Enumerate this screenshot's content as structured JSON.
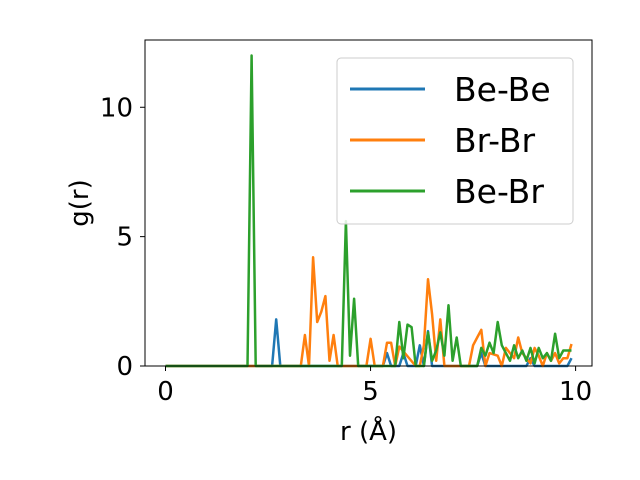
{
  "chart_data": {
    "type": "line",
    "title": "",
    "xlabel": "r (Å)",
    "ylabel": "g(r)",
    "xlim": [
      -0.5,
      10.4
    ],
    "ylim": [
      0,
      12.6
    ],
    "xticks": [
      0,
      5,
      10
    ],
    "xtick_labels": [
      "0",
      "5",
      "10"
    ],
    "yticks": [
      0,
      5,
      10
    ],
    "ytick_labels": [
      "0",
      "5",
      "10"
    ],
    "grid": false,
    "legend_position": "top-right",
    "series": [
      {
        "name": "Be-Be",
        "color": "#1f77b4",
        "x": [
          0,
          2.6,
          2.7,
          2.8,
          5.3,
          5.4,
          5.5,
          5.7,
          5.8,
          5.9,
          6.1,
          6.2,
          6.3,
          6.4,
          6.5,
          6.6,
          7.6,
          7.7,
          7.8,
          8.8,
          8.9,
          9.0,
          9.8,
          9.9
        ],
        "y": [
          0,
          0,
          1.8,
          0,
          0,
          0.5,
          0,
          0,
          0.5,
          0,
          0,
          0.8,
          0,
          1.35,
          0,
          0,
          0,
          0.5,
          0,
          0,
          0.3,
          0,
          0,
          0.3
        ]
      },
      {
        "name": "Br-Br",
        "color": "#ff7f0e",
        "x": [
          0,
          3.3,
          3.4,
          3.5,
          3.6,
          3.7,
          3.8,
          3.9,
          4.0,
          4.1,
          4.2,
          4.9,
          5.0,
          5.1,
          5.3,
          5.4,
          5.5,
          5.6,
          5.7,
          6.1,
          6.2,
          6.3,
          6.4,
          6.5,
          6.6,
          6.7,
          6.8,
          7.4,
          7.5,
          7.6,
          7.7,
          7.8,
          7.9,
          8.1,
          8.2,
          8.3,
          8.4,
          8.5,
          8.6,
          8.7,
          8.8,
          8.9,
          9.0,
          9.1,
          9.2,
          9.3,
          9.4,
          9.5,
          9.6,
          9.7,
          9.8,
          9.9
        ],
        "y": [
          0,
          0,
          1.2,
          0,
          4.2,
          1.7,
          2.1,
          2.7,
          0.2,
          1.2,
          0,
          0,
          1.05,
          0,
          0,
          0.9,
          0.9,
          0,
          0.75,
          0,
          0,
          0.8,
          3.35,
          2.0,
          0.2,
          1.8,
          0,
          0,
          0.8,
          1.1,
          1.4,
          0,
          0.5,
          0.4,
          0,
          0.7,
          0.5,
          0.3,
          1.1,
          0.5,
          0.3,
          0.1,
          0.7,
          0.4,
          0,
          0.5,
          0.2,
          0.5,
          0.1,
          0.3,
          0.3,
          0.85
        ]
      },
      {
        "name": "Be-Br",
        "color": "#2ca02c",
        "x": [
          0,
          2.0,
          2.1,
          2.2,
          4.3,
          4.4,
          4.5,
          4.6,
          4.7,
          5.6,
          5.7,
          5.8,
          5.9,
          6.0,
          6.1,
          6.3,
          6.4,
          6.5,
          6.6,
          6.7,
          6.8,
          6.9,
          7.0,
          7.1,
          7.2,
          7.6,
          7.7,
          7.8,
          7.9,
          8.0,
          8.1,
          8.2,
          8.3,
          8.4,
          8.5,
          8.6,
          8.7,
          8.8,
          8.9,
          9.0,
          9.1,
          9.2,
          9.3,
          9.4,
          9.5,
          9.6,
          9.7,
          9.8,
          9.9
        ],
        "y": [
          0,
          0,
          12.0,
          0,
          0,
          5.6,
          0.4,
          2.6,
          0,
          0,
          1.7,
          0.3,
          1.6,
          1.5,
          0,
          0,
          1.3,
          0.2,
          0.6,
          1.3,
          0.4,
          2.35,
          0.2,
          1.1,
          0,
          0,
          0.7,
          0.4,
          0.9,
          0.5,
          1.7,
          0.8,
          0.5,
          0.2,
          0.8,
          0.3,
          0.6,
          0.2,
          0.7,
          0.1,
          0.7,
          0.3,
          0.5,
          0.2,
          1.25,
          0.3,
          0.6,
          0.6,
          0.6
        ]
      }
    ]
  }
}
